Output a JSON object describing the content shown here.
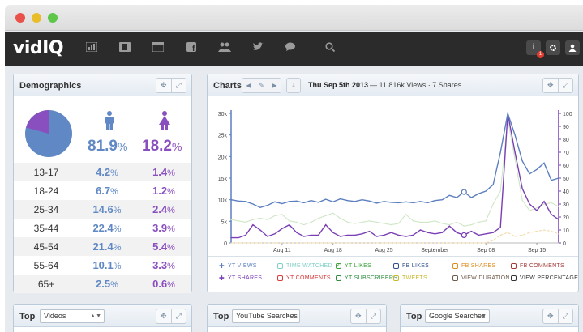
{
  "nav": {
    "logo": "vidIQ",
    "notification_count": "1",
    "icons": [
      "bar-chart-icon",
      "film-icon",
      "browser-icon",
      "facebook-icon",
      "users-icon",
      "twitter-icon",
      "chat-icon",
      "search-icon"
    ],
    "right_icons": [
      "notification-icon",
      "gear-icon",
      "user-icon"
    ]
  },
  "demographics": {
    "title": "Demographics",
    "male_pct": "81.9",
    "female_pct": "18.2",
    "pct_sign": "%",
    "rows": [
      {
        "age": "13-17",
        "male": "4.2",
        "female": "1.4"
      },
      {
        "age": "18-24",
        "male": "6.7",
        "female": "1.2"
      },
      {
        "age": "25-34",
        "male": "14.6",
        "female": "2.4"
      },
      {
        "age": "35-44",
        "male": "22.4",
        "female": "3.9"
      },
      {
        "age": "45-54",
        "male": "21.4",
        "female": "5.4"
      },
      {
        "age": "55-64",
        "male": "10.1",
        "female": "3.3"
      },
      {
        "age": "65+",
        "male": "2.5",
        "female": "0.6"
      }
    ],
    "colors": {
      "male": "#5f88c4",
      "female": "#8a4fbf"
    }
  },
  "charts": {
    "title": "Charts",
    "date": "Thu Sep 5th 2013",
    "meta": "— 11.816k Views · 7 Shares",
    "legend": [
      {
        "label": "YT VIEWS",
        "color": "#5b7fbf",
        "icon": "pin-icon"
      },
      {
        "label": "TIME WATCHED",
        "color": "#7fcfc6",
        "icon": "box-icon"
      },
      {
        "label": "YT LIKES",
        "color": "#3aa23a",
        "icon": "check-icon"
      },
      {
        "label": "FB LIKES",
        "color": "#2c4f8f",
        "icon": "box-icon"
      },
      {
        "label": "FB SHARES",
        "color": "#e08a1a",
        "icon": "box-icon"
      },
      {
        "label": "FB COMMENTS",
        "color": "#a33a3a",
        "icon": "box-icon"
      },
      {
        "label": "YT SHARES",
        "color": "#7a3fb5",
        "icon": "pin-icon"
      },
      {
        "label": "YT COMMENTS",
        "color": "#d83a3a",
        "icon": "box-icon"
      },
      {
        "label": "YT SUBSCRIBERS",
        "color": "#2e8c3e",
        "icon": "box-icon"
      },
      {
        "label": "TWEETS",
        "color": "#c8b82a",
        "icon": "box-icon"
      },
      {
        "label": "VIEW DURATION",
        "color": "#6e5a4a",
        "icon": "box-icon"
      },
      {
        "label": "VIEW PERCENTAGE",
        "color": "#333333",
        "icon": "box-icon"
      }
    ]
  },
  "chart_data": {
    "type": "line",
    "x": [
      "Aug 4",
      "Aug 5",
      "Aug 6",
      "Aug 7",
      "Aug 8",
      "Aug 9",
      "Aug 10",
      "Aug 11",
      "Aug 12",
      "Aug 13",
      "Aug 14",
      "Aug 15",
      "Aug 16",
      "Aug 17",
      "Aug 18",
      "Aug 19",
      "Aug 20",
      "Aug 21",
      "Aug 22",
      "Aug 23",
      "Aug 24",
      "Aug 25",
      "Aug 26",
      "Aug 27",
      "Aug 28",
      "Aug 29",
      "Aug 30",
      "Aug 31",
      "Sep 1",
      "Sep 2",
      "Sep 3",
      "Sep 4",
      "Sep 5",
      "Sep 6",
      "Sep 7",
      "Sep 8",
      "Sep 9",
      "Sep 10",
      "Sep 11",
      "Sep 12",
      "Sep 13",
      "Sep 14",
      "Sep 15",
      "Sep 16",
      "Sep 17",
      "Sep 18"
    ],
    "x_ticks": [
      "Aug 11",
      "Aug 18",
      "Aug 25",
      "September",
      "Sep 08",
      "Sep 15"
    ],
    "y_left_ticks": [
      "0",
      "5k",
      "10k",
      "15k",
      "20k",
      "25k",
      "30k"
    ],
    "y_right_ticks": [
      "0",
      "10",
      "20",
      "30",
      "40",
      "50",
      "60",
      "70",
      "80",
      "90",
      "100"
    ],
    "ylim_left": [
      0,
      30000
    ],
    "ylim_right": [
      0,
      100
    ],
    "series": [
      {
        "axis": "left",
        "color": "#5b7fbf",
        "values": [
          10000,
          9700,
          9600,
          9000,
          8200,
          8700,
          9500,
          9100,
          9600,
          9700,
          9300,
          9800,
          9400,
          10100,
          9500,
          10200,
          9800,
          9600,
          10000,
          9700,
          9200,
          9600,
          9400,
          9300,
          9500,
          9300,
          9600,
          9300,
          9800,
          10000,
          11000,
          10500,
          11800,
          10500,
          11400,
          12000,
          13500,
          21000,
          30000,
          25000,
          19000,
          16000,
          17000,
          18500,
          14500,
          15000
        ]
      },
      {
        "axis": "right",
        "color": "#7a3fb5",
        "values": [
          4,
          4,
          6,
          14,
          10,
          5,
          7,
          11,
          14,
          8,
          5,
          6,
          6,
          14,
          8,
          5,
          6,
          6,
          7,
          9,
          5,
          6,
          8,
          6,
          5,
          6,
          10,
          8,
          7,
          8,
          13,
          8,
          6,
          9,
          6,
          7,
          8,
          12,
          100,
          70,
          42,
          30,
          25,
          32,
          22,
          18
        ]
      },
      {
        "axis": "right",
        "color": "#cfe6c6",
        "values": [
          18,
          17,
          16,
          18,
          19,
          18,
          21,
          22,
          17,
          16,
          14,
          16,
          19,
          21,
          23,
          19,
          16,
          15,
          16,
          17,
          16,
          15,
          14,
          15,
          22,
          17,
          16,
          16,
          17,
          15,
          14,
          16,
          13,
          14,
          16,
          17,
          30,
          40,
          95,
          65,
          33,
          25,
          27,
          30,
          31,
          28
        ]
      },
      {
        "axis": "right",
        "color": "#f2d9a8",
        "values": [
          0,
          0,
          0,
          0,
          0,
          0,
          0,
          0,
          0,
          0,
          0,
          0,
          0,
          0,
          0,
          0,
          0,
          0,
          0,
          0,
          0,
          0,
          0,
          0,
          0,
          0,
          0,
          0,
          0,
          0,
          0,
          0,
          0,
          0,
          0,
          0,
          2,
          6,
          8,
          5,
          6,
          8,
          9,
          10,
          9,
          7
        ]
      }
    ],
    "markers": [
      {
        "series": 0,
        "index": 32
      },
      {
        "series": 1,
        "index": 32
      }
    ]
  },
  "bottom": [
    {
      "label": "Top",
      "select": "Videos"
    },
    {
      "label": "Top",
      "select": "YouTube Searches"
    },
    {
      "label": "Top",
      "select": "Google Searches"
    }
  ]
}
